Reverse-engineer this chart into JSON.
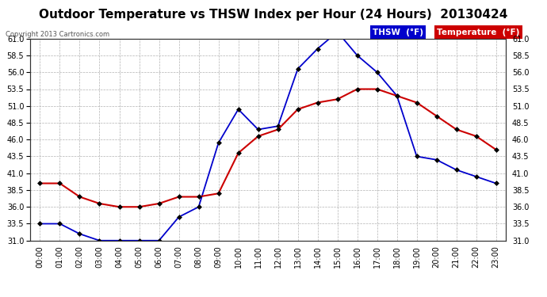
{
  "title": "Outdoor Temperature vs THSW Index per Hour (24 Hours)  20130424",
  "copyright": "Copyright 2013 Cartronics.com",
  "hours": [
    "00:00",
    "01:00",
    "02:00",
    "03:00",
    "04:00",
    "05:00",
    "06:00",
    "07:00",
    "08:00",
    "09:00",
    "10:00",
    "11:00",
    "12:00",
    "13:00",
    "14:00",
    "15:00",
    "16:00",
    "17:00",
    "18:00",
    "19:00",
    "20:00",
    "21:00",
    "22:00",
    "23:00"
  ],
  "thsw": [
    33.5,
    33.5,
    32.0,
    31.0,
    31.0,
    31.0,
    31.0,
    34.5,
    36.0,
    45.5,
    50.5,
    47.5,
    48.0,
    56.5,
    59.5,
    62.0,
    58.5,
    56.0,
    52.5,
    43.5,
    43.0,
    41.5,
    40.5,
    39.5
  ],
  "temperature": [
    39.5,
    39.5,
    37.5,
    36.5,
    36.0,
    36.0,
    36.5,
    37.5,
    37.5,
    38.0,
    44.0,
    46.5,
    47.5,
    50.5,
    51.5,
    52.0,
    53.5,
    53.5,
    52.5,
    51.5,
    49.5,
    47.5,
    46.5,
    44.5
  ],
  "ylim": [
    31.0,
    61.0
  ],
  "yticks": [
    31.0,
    33.5,
    36.0,
    38.5,
    41.0,
    43.5,
    46.0,
    48.5,
    51.0,
    53.5,
    56.0,
    58.5,
    61.0
  ],
  "thsw_color": "#0000cc",
  "temp_color": "#cc0000",
  "background_color": "#ffffff",
  "grid_color": "#aaaaaa",
  "title_fontsize": 11,
  "copyright_fontsize": 6,
  "tick_fontsize": 7,
  "legend_thsw_label": "THSW  (°F)",
  "legend_temp_label": "Temperature  (°F)",
  "legend_thsw_bg": "#0000cc",
  "legend_temp_bg": "#cc0000"
}
